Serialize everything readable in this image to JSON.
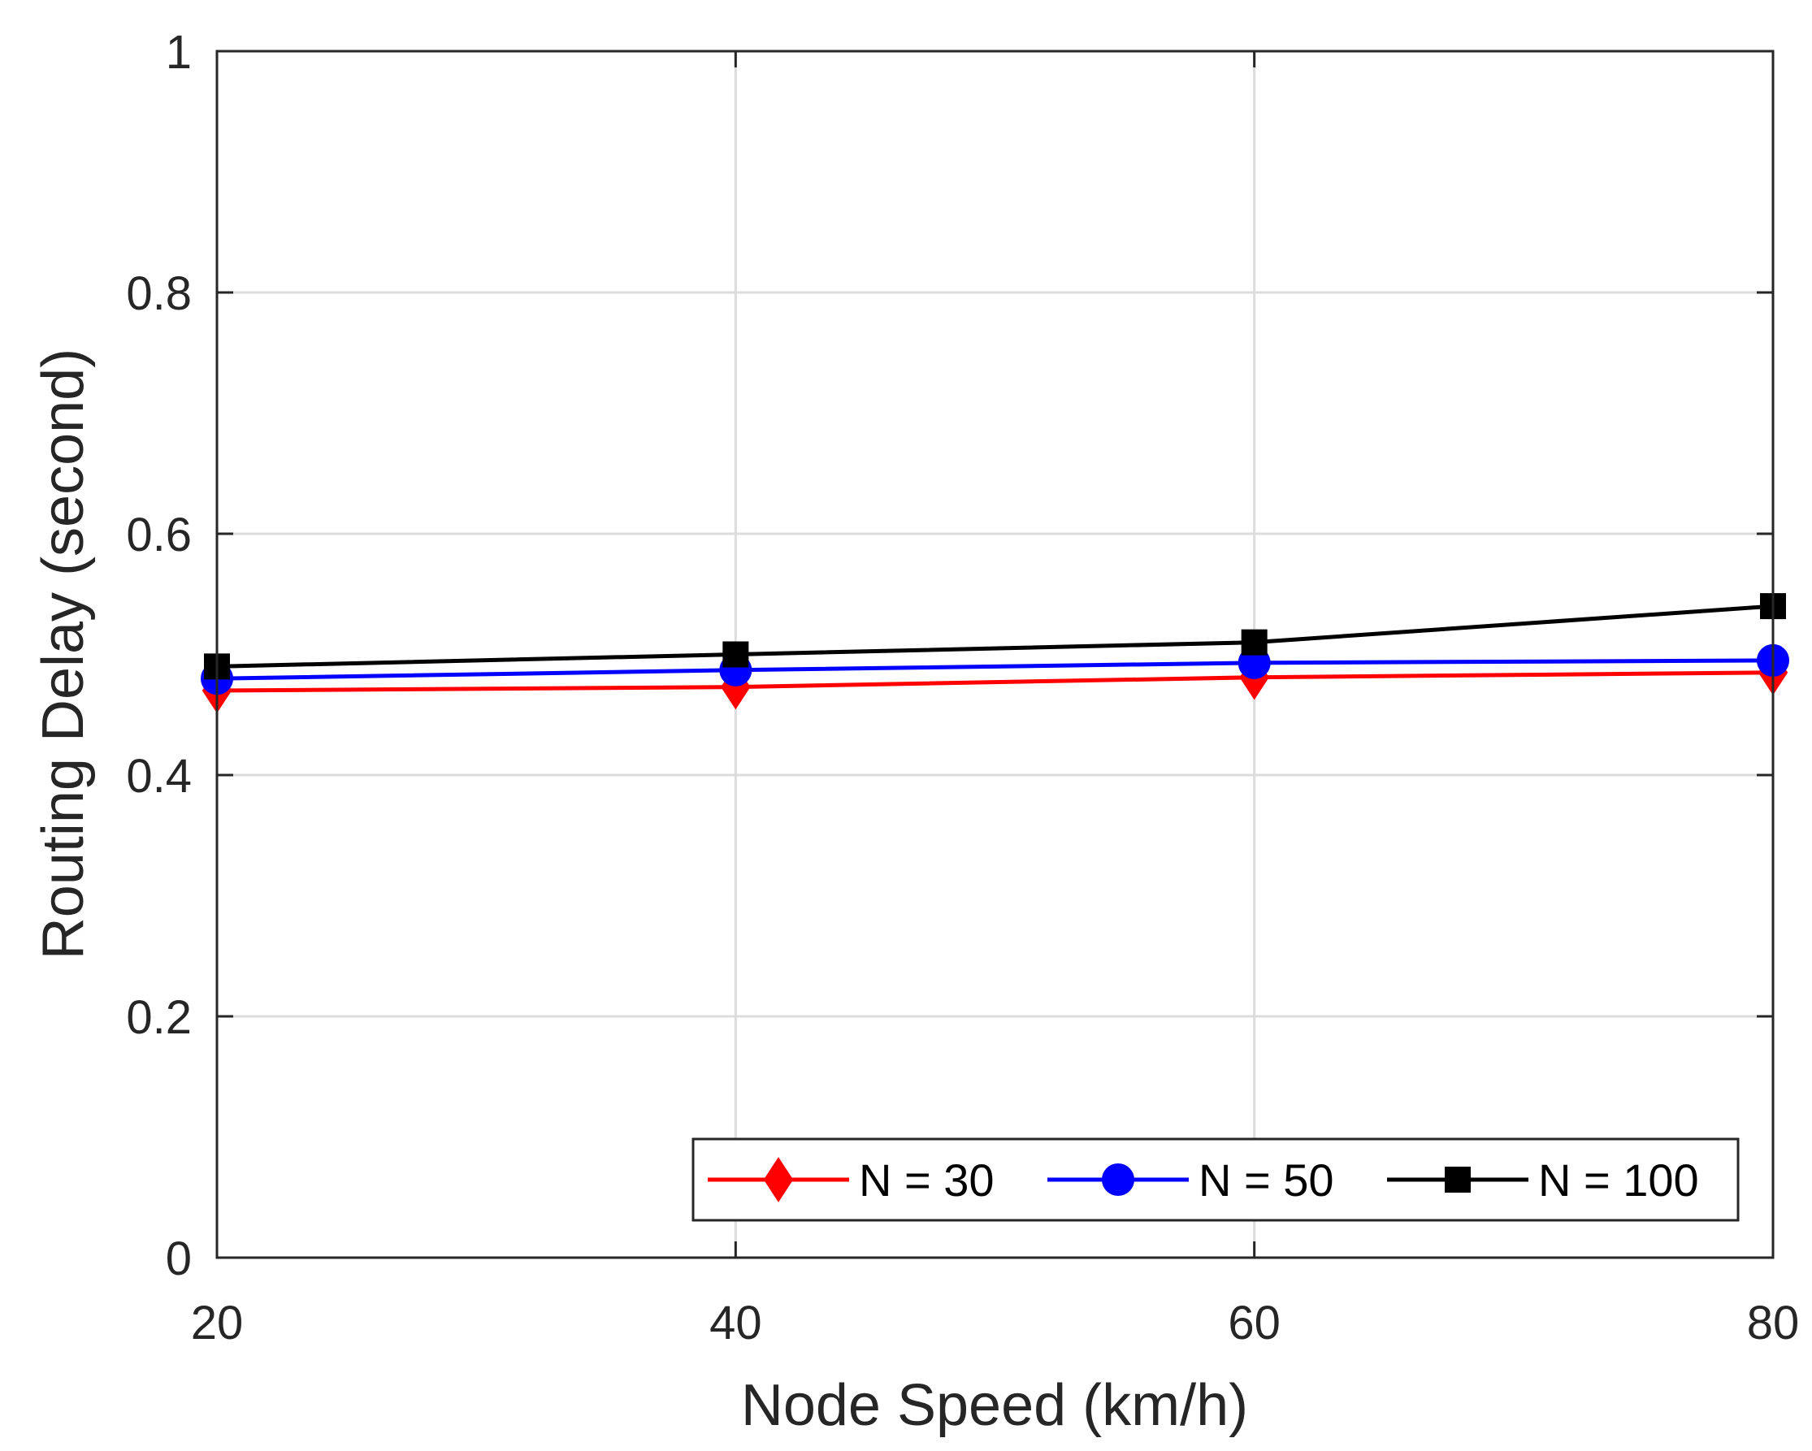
{
  "chart_data": {
    "type": "line",
    "title": "",
    "xlabel": "Node Speed (km/h)",
    "ylabel": "Routing Delay (second)",
    "x": [
      20,
      40,
      60,
      80
    ],
    "xlim": [
      20,
      80
    ],
    "ylim": [
      0,
      1
    ],
    "xticks": [
      20,
      40,
      60,
      80
    ],
    "xtick_labels": [
      "20",
      "40",
      "60",
      "80"
    ],
    "yticks": [
      0,
      0.2,
      0.4,
      0.6,
      0.8,
      1
    ],
    "ytick_labels": [
      "0",
      "0.2",
      "0.4",
      "0.6",
      "0.8",
      "1"
    ],
    "grid": true,
    "legend_position": "bottom-right",
    "series": [
      {
        "name": "N = 30",
        "values": [
          0.47,
          0.473,
          0.481,
          0.485
        ],
        "color": "#ff0000",
        "marker": "diamond"
      },
      {
        "name": "N = 50",
        "values": [
          0.48,
          0.487,
          0.493,
          0.495
        ],
        "color": "#0000ff",
        "marker": "circle"
      },
      {
        "name": "N = 100",
        "values": [
          0.49,
          0.5,
          0.51,
          0.54
        ],
        "color": "#000000",
        "marker": "square"
      }
    ]
  }
}
